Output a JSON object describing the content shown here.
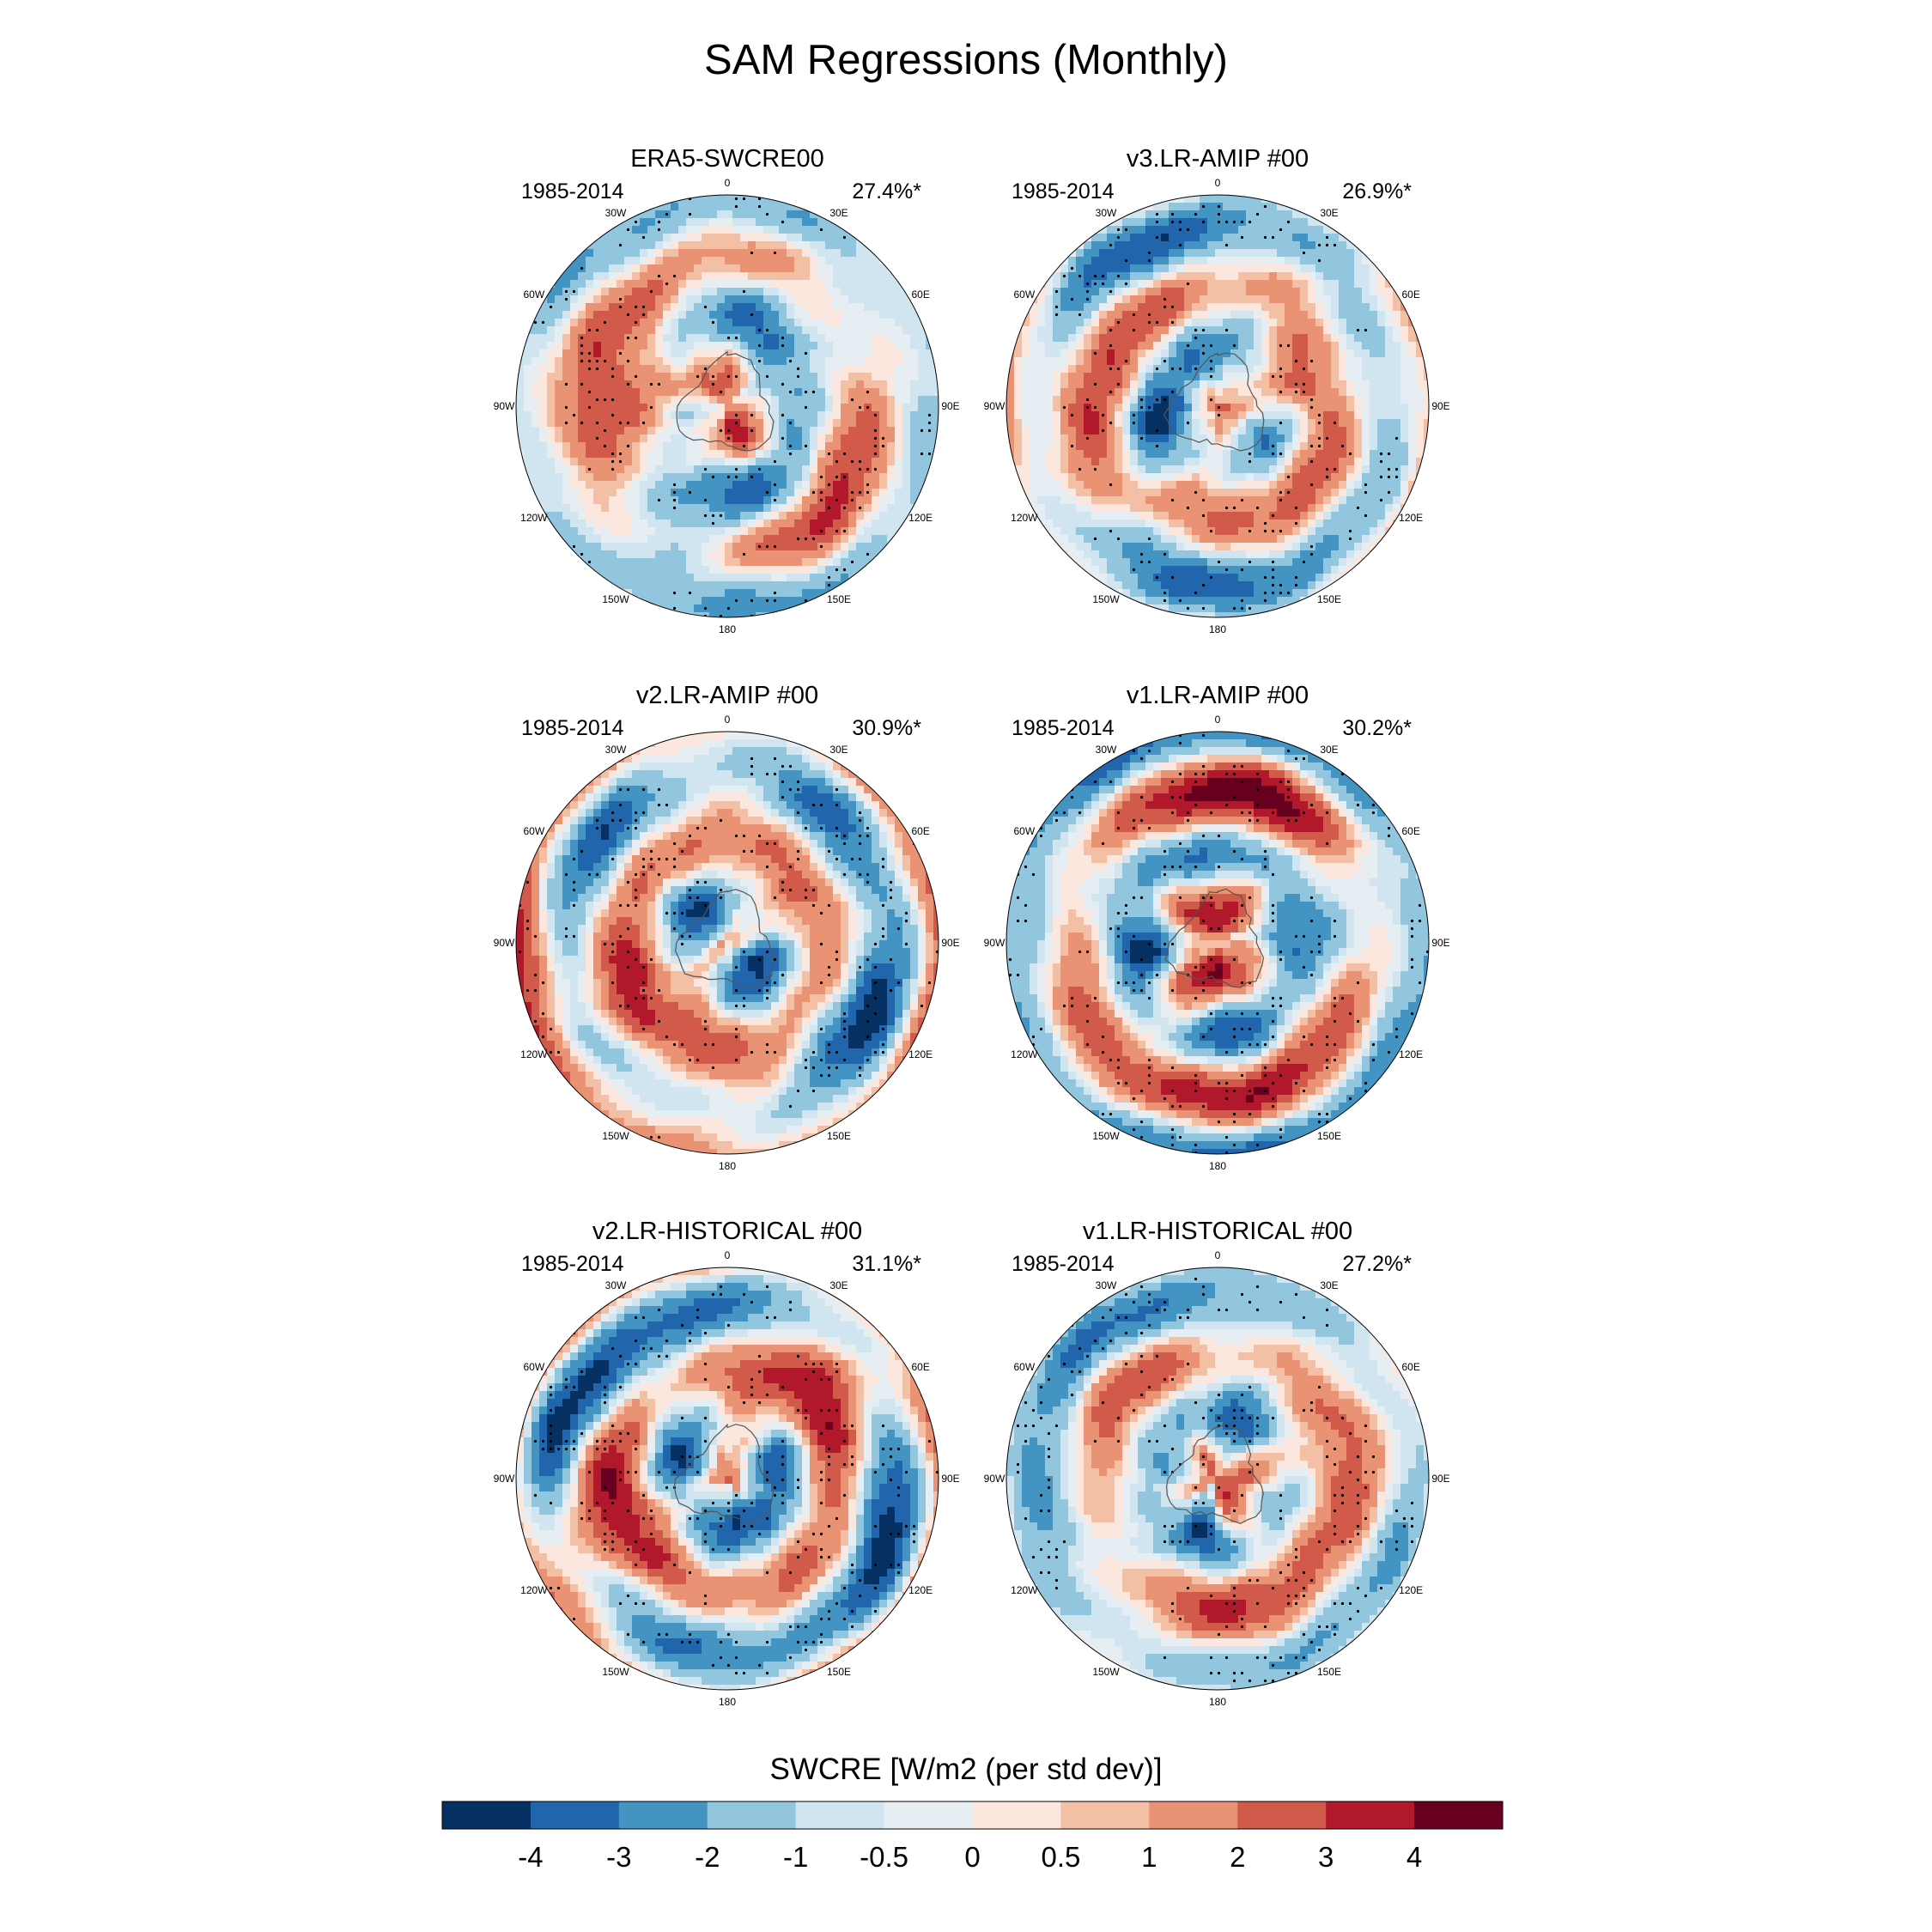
{
  "title": "SAM Regressions (Monthly)",
  "panels": [
    {
      "title": "ERA5-SWCRE00",
      "period": "1985-2014",
      "variance": "27.4%*"
    },
    {
      "title": "v3.LR-AMIP  #00",
      "period": "1985-2014",
      "variance": "26.9%*"
    },
    {
      "title": "v2.LR-AMIP  #00",
      "period": "1985-2014",
      "variance": "30.9%*"
    },
    {
      "title": "v1.LR-AMIP  #00",
      "period": "1985-2014",
      "variance": "30.2%*"
    },
    {
      "title": "v2.LR-HISTORICAL  #00",
      "period": "1985-2014",
      "variance": "31.1%*"
    },
    {
      "title": "v1.LR-HISTORICAL  #00",
      "period": "1985-2014",
      "variance": "27.2%*"
    }
  ],
  "lon_labels": [
    "0",
    "30E",
    "60E",
    "90E",
    "120E",
    "150E",
    "180",
    "150W",
    "120W",
    "90W",
    "60W",
    "30W"
  ],
  "colorbar": {
    "title": "SWCRE [W/m2 (per std dev)]",
    "levels": [
      "-4",
      "-3",
      "-2",
      "-1",
      "-0.5",
      "0",
      "0.5",
      "1",
      "2",
      "3",
      "4"
    ],
    "colors": [
      "#053061",
      "#2166ac",
      "#4393c3",
      "#92c5de",
      "#d1e5f0",
      "#e6eef4",
      "#fbe7de",
      "#f4c0a5",
      "#ea9374",
      "#d15a4b",
      "#b2182b",
      "#67001f"
    ]
  },
  "chart_data": {
    "type": "heatmap",
    "projection": "south polar stereographic",
    "variable": "SWCRE [W/m2 (per std dev)]",
    "contour_levels": [
      -4,
      -3,
      -2,
      -1,
      -0.5,
      0,
      0.5,
      1,
      2,
      3,
      4
    ],
    "stippling": "significant regions",
    "panels": [
      {
        "name": "ERA5-SWCRE00",
        "period": "1985-2014",
        "variance_explained_pct": 27.4
      },
      {
        "name": "v3.LR-AMIP  #00",
        "period": "1985-2014",
        "variance_explained_pct": 26.9
      },
      {
        "name": "v2.LR-AMIP  #00",
        "period": "1985-2014",
        "variance_explained_pct": 30.9
      },
      {
        "name": "v1.LR-AMIP  #00",
        "period": "1985-2014",
        "variance_explained_pct": 30.2
      },
      {
        "name": "v2.LR-HISTORICAL  #00",
        "period": "1985-2014",
        "variance_explained_pct": 31.1
      },
      {
        "name": "v1.LR-HISTORICAL  #00",
        "period": "1985-2014",
        "variance_explained_pct": 27.2
      }
    ]
  }
}
